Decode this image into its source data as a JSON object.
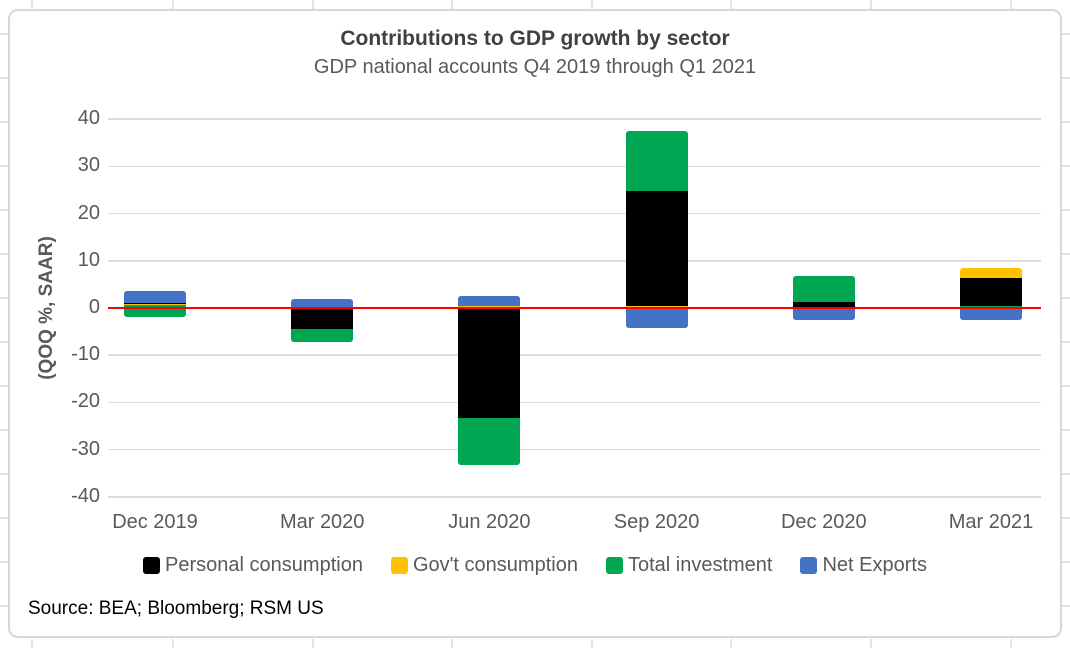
{
  "source_note": "Source: BEA; Bloomberg; RSM US",
  "colors": {
    "text_gray": "#595959",
    "title_gray": "#404040",
    "plot_gridline": "#dcdcdc",
    "chart_border": "#d8d8d8",
    "sheet_gridline": "#e2e2e2",
    "zero_line": "#ff0000"
  },
  "chart_data": {
    "type": "stacked-bar",
    "title": "Contributions to GDP growth by sector",
    "subtitle": "GDP national accounts Q4 2019 through Q1 2021",
    "ylabel": "(QOQ %, SAAR)",
    "ylim": [
      -40,
      40
    ],
    "yticks": [
      40,
      30,
      20,
      10,
      0,
      -10,
      -20,
      -30,
      -40
    ],
    "grid": true,
    "zero_line_color": "#ff0000",
    "legend_position": "bottom",
    "categories": [
      "Dec 2019",
      "Mar 2020",
      "Jun 2020",
      "Sep 2020",
      "Dec 2020",
      "Mar 2021"
    ],
    "legend": [
      "Personal consumption",
      "Gov't consumption",
      "Total investment",
      "Net Exports"
    ],
    "series_colors": {
      "Personal consumption": "#000000",
      "Gov't consumption": "#ffc000",
      "Total investment": "#00a651",
      "Net Exports": "#4472c4"
    },
    "bars": [
      {
        "category": "Dec 2019",
        "segments": [
          {
            "series": "Net Exports",
            "from": 1.0,
            "to": 3.5
          },
          {
            "series": "Personal consumption",
            "from": 0.75,
            "to": 1.0
          },
          {
            "series": "Gov't consumption",
            "from": 0.55,
            "to": 0.75
          },
          {
            "series": "Total investment",
            "from": -1.9,
            "to": 0.55
          }
        ]
      },
      {
        "category": "Mar 2020",
        "segments": [
          {
            "series": "Net Exports",
            "from": 0.1,
            "to": 2.0
          },
          {
            "series": "Gov't consumption",
            "from": 0.0,
            "to": 0.1
          },
          {
            "series": "Personal consumption",
            "from": -4.5,
            "to": 0.0
          },
          {
            "series": "Total investment",
            "from": -7.1,
            "to": -4.5
          }
        ]
      },
      {
        "category": "Jun 2020",
        "segments": [
          {
            "series": "Net Exports",
            "from": 0.4,
            "to": 2.5
          },
          {
            "series": "Gov't consumption",
            "from": 0.0,
            "to": 0.4
          },
          {
            "series": "Personal consumption",
            "from": -23.4,
            "to": 0.0
          },
          {
            "series": "Total investment",
            "from": -33.3,
            "to": -23.4
          }
        ]
      },
      {
        "category": "Sep 2020",
        "segments": [
          {
            "series": "Total investment",
            "from": 24.7,
            "to": 37.4
          },
          {
            "series": "Personal consumption",
            "from": 0.5,
            "to": 24.7
          },
          {
            "series": "Gov't consumption",
            "from": 0.0,
            "to": 0.5
          },
          {
            "series": "Net Exports",
            "from": -4.3,
            "to": 0.0
          }
        ]
      },
      {
        "category": "Dec 2020",
        "segments": [
          {
            "series": "Total investment",
            "from": 1.3,
            "to": 6.7
          },
          {
            "series": "Personal consumption",
            "from": 0.0,
            "to": 1.3
          },
          {
            "series": "Net Exports",
            "from": -2.6,
            "to": 0.0
          }
        ]
      },
      {
        "category": "Mar 2021",
        "segments": [
          {
            "series": "Gov't consumption",
            "from": 6.3,
            "to": 8.5
          },
          {
            "series": "Personal consumption",
            "from": 0.5,
            "to": 6.3
          },
          {
            "series": "Total investment",
            "from": -0.3,
            "to": 0.5
          },
          {
            "series": "Net Exports",
            "from": -2.5,
            "to": -0.3
          }
        ]
      }
    ]
  }
}
